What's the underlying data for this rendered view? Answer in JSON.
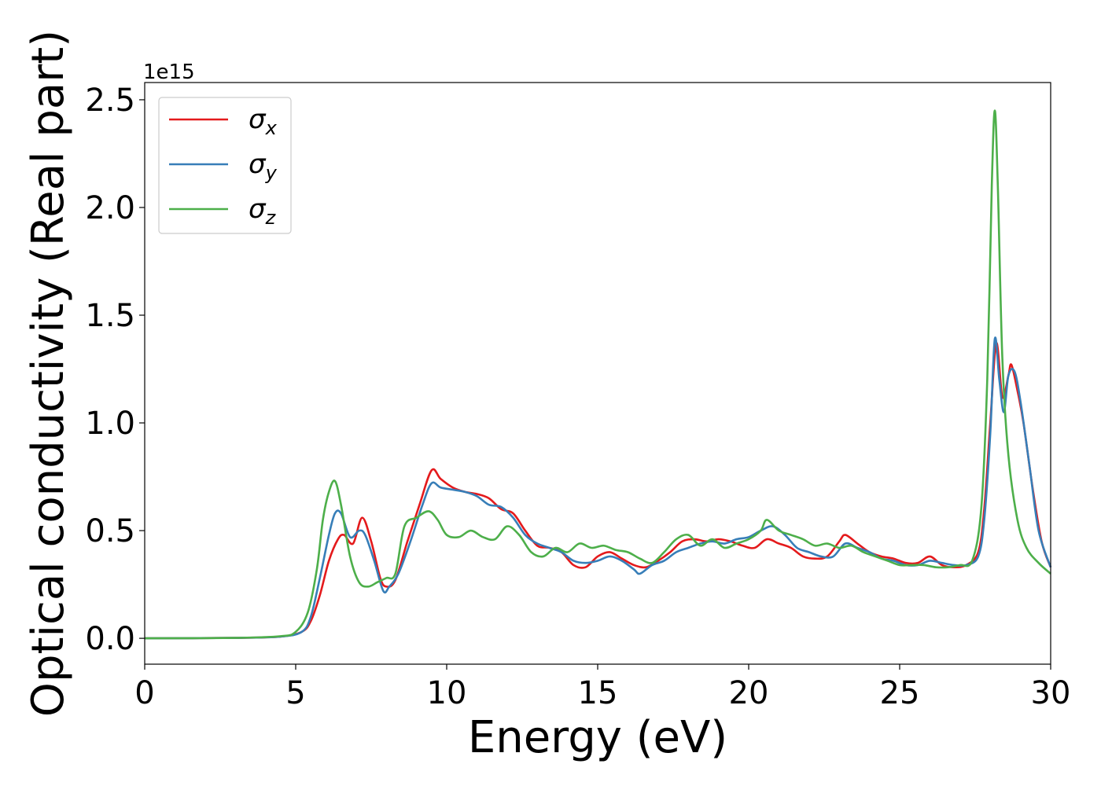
{
  "chart_data": {
    "type": "line",
    "title": "",
    "xlabel": "Energy (eV)",
    "ylabel": "Optical conductivity (Real part)",
    "y_offset_label": "1e15",
    "xlim": [
      0,
      30
    ],
    "ylim": [
      -0.12,
      2.58
    ],
    "xticks": [
      0,
      5,
      10,
      15,
      20,
      25,
      30
    ],
    "yticks": [
      0.0,
      0.5,
      1.0,
      1.5,
      2.0,
      2.5
    ],
    "xtick_labels": [
      "0",
      "5",
      "10",
      "15",
      "20",
      "25",
      "30"
    ],
    "ytick_labels": [
      "0.0",
      "0.5",
      "1.0",
      "1.5",
      "2.0",
      "2.5"
    ],
    "grid": false,
    "legend_position": "top-left",
    "series": [
      {
        "name": "σ_x",
        "symbol": "σ",
        "subscript": "x",
        "color": "#e41a1c",
        "x": [
          0,
          3,
          4.5,
          5.2,
          5.5,
          5.8,
          6.1,
          6.4,
          6.6,
          6.9,
          7.2,
          7.5,
          7.8,
          8.0,
          8.3,
          8.7,
          9.1,
          9.5,
          9.8,
          10.2,
          10.6,
          11.0,
          11.4,
          11.8,
          12.2,
          12.6,
          13.0,
          13.4,
          13.8,
          14.2,
          14.6,
          15.0,
          15.4,
          15.8,
          16.2,
          16.6,
          17.0,
          17.4,
          17.8,
          18.2,
          18.6,
          19.0,
          19.4,
          19.8,
          20.2,
          20.6,
          21.0,
          21.4,
          21.8,
          22.2,
          22.6,
          23.0,
          23.2,
          23.6,
          24.0,
          24.4,
          24.8,
          25.2,
          25.6,
          26.0,
          26.4,
          26.8,
          27.2,
          27.6,
          27.8,
          28.0,
          28.2,
          28.4,
          28.6,
          28.7,
          28.9,
          29.1,
          29.4,
          29.7,
          30.0
        ],
        "y": [
          0.0,
          0.002,
          0.008,
          0.03,
          0.08,
          0.2,
          0.36,
          0.46,
          0.48,
          0.44,
          0.56,
          0.45,
          0.28,
          0.24,
          0.27,
          0.45,
          0.62,
          0.78,
          0.74,
          0.7,
          0.68,
          0.67,
          0.65,
          0.6,
          0.58,
          0.5,
          0.43,
          0.42,
          0.4,
          0.34,
          0.33,
          0.38,
          0.4,
          0.37,
          0.34,
          0.33,
          0.36,
          0.4,
          0.45,
          0.46,
          0.45,
          0.46,
          0.45,
          0.43,
          0.42,
          0.46,
          0.44,
          0.42,
          0.38,
          0.37,
          0.38,
          0.45,
          0.48,
          0.44,
          0.4,
          0.38,
          0.37,
          0.35,
          0.35,
          0.38,
          0.34,
          0.33,
          0.34,
          0.4,
          0.6,
          1.0,
          1.37,
          1.12,
          1.22,
          1.27,
          1.15,
          1.0,
          0.7,
          0.45,
          0.33
        ]
      },
      {
        "name": "σ_y",
        "symbol": "σ",
        "subscript": "y",
        "color": "#377eb8",
        "x": [
          0,
          3,
          4.5,
          5.2,
          5.5,
          5.8,
          6.1,
          6.3,
          6.5,
          6.8,
          7.1,
          7.3,
          7.6,
          7.9,
          8.1,
          8.4,
          8.8,
          9.2,
          9.5,
          9.8,
          10.2,
          10.6,
          11.0,
          11.4,
          11.8,
          12.2,
          12.6,
          13.0,
          13.4,
          13.8,
          14.2,
          14.6,
          15.0,
          15.4,
          15.8,
          16.2,
          16.4,
          16.8,
          17.2,
          17.6,
          18.0,
          18.4,
          18.8,
          19.2,
          19.6,
          20.0,
          20.4,
          20.8,
          21.2,
          21.6,
          22.0,
          22.4,
          22.8,
          23.2,
          23.6,
          24.0,
          24.4,
          24.8,
          25.2,
          25.6,
          26.0,
          26.4,
          26.8,
          27.2,
          27.6,
          27.8,
          28.0,
          28.15,
          28.3,
          28.45,
          28.6,
          28.8,
          29.0,
          29.3,
          29.6,
          30.0
        ],
        "y": [
          0.0,
          0.002,
          0.008,
          0.03,
          0.1,
          0.28,
          0.48,
          0.58,
          0.58,
          0.47,
          0.5,
          0.48,
          0.36,
          0.22,
          0.24,
          0.3,
          0.45,
          0.62,
          0.72,
          0.7,
          0.69,
          0.68,
          0.66,
          0.62,
          0.61,
          0.56,
          0.48,
          0.44,
          0.42,
          0.4,
          0.36,
          0.35,
          0.36,
          0.38,
          0.36,
          0.32,
          0.3,
          0.34,
          0.36,
          0.4,
          0.42,
          0.44,
          0.45,
          0.44,
          0.46,
          0.47,
          0.5,
          0.52,
          0.48,
          0.42,
          0.4,
          0.38,
          0.38,
          0.44,
          0.42,
          0.4,
          0.37,
          0.36,
          0.34,
          0.34,
          0.36,
          0.35,
          0.34,
          0.34,
          0.38,
          0.55,
          0.95,
          1.39,
          1.2,
          1.05,
          1.22,
          1.24,
          1.1,
          0.8,
          0.5,
          0.33
        ]
      },
      {
        "name": "σ_z",
        "symbol": "σ",
        "subscript": "z",
        "color": "#4daf4a",
        "x": [
          0,
          3,
          4.5,
          5.0,
          5.4,
          5.7,
          5.9,
          6.1,
          6.3,
          6.5,
          6.8,
          7.1,
          7.4,
          7.7,
          8.0,
          8.3,
          8.6,
          9.0,
          9.4,
          9.7,
          10.0,
          10.4,
          10.8,
          11.2,
          11.6,
          12.0,
          12.4,
          12.8,
          13.2,
          13.6,
          14.0,
          14.4,
          14.8,
          15.2,
          15.6,
          16.0,
          16.4,
          16.8,
          17.2,
          17.6,
          18.0,
          18.4,
          18.8,
          19.2,
          19.6,
          20.0,
          20.4,
          20.6,
          21.0,
          21.4,
          21.8,
          22.2,
          22.6,
          23.0,
          23.4,
          23.8,
          24.2,
          24.6,
          25.0,
          25.4,
          25.8,
          26.2,
          26.6,
          27.0,
          27.4,
          27.7,
          27.9,
          28.05,
          28.15,
          28.25,
          28.4,
          28.6,
          28.9,
          29.2,
          29.6,
          30.0
        ],
        "y": [
          0.0,
          0.002,
          0.01,
          0.03,
          0.12,
          0.32,
          0.55,
          0.68,
          0.73,
          0.62,
          0.38,
          0.26,
          0.24,
          0.26,
          0.28,
          0.3,
          0.52,
          0.56,
          0.59,
          0.55,
          0.48,
          0.47,
          0.5,
          0.47,
          0.46,
          0.52,
          0.48,
          0.4,
          0.38,
          0.42,
          0.4,
          0.44,
          0.42,
          0.43,
          0.41,
          0.4,
          0.37,
          0.35,
          0.4,
          0.46,
          0.48,
          0.43,
          0.46,
          0.42,
          0.44,
          0.46,
          0.5,
          0.55,
          0.5,
          0.48,
          0.46,
          0.43,
          0.44,
          0.42,
          0.43,
          0.4,
          0.38,
          0.36,
          0.34,
          0.34,
          0.34,
          0.33,
          0.33,
          0.34,
          0.36,
          0.6,
          1.2,
          2.1,
          2.45,
          2.1,
          1.3,
          0.85,
          0.55,
          0.42,
          0.35,
          0.3
        ]
      }
    ]
  }
}
